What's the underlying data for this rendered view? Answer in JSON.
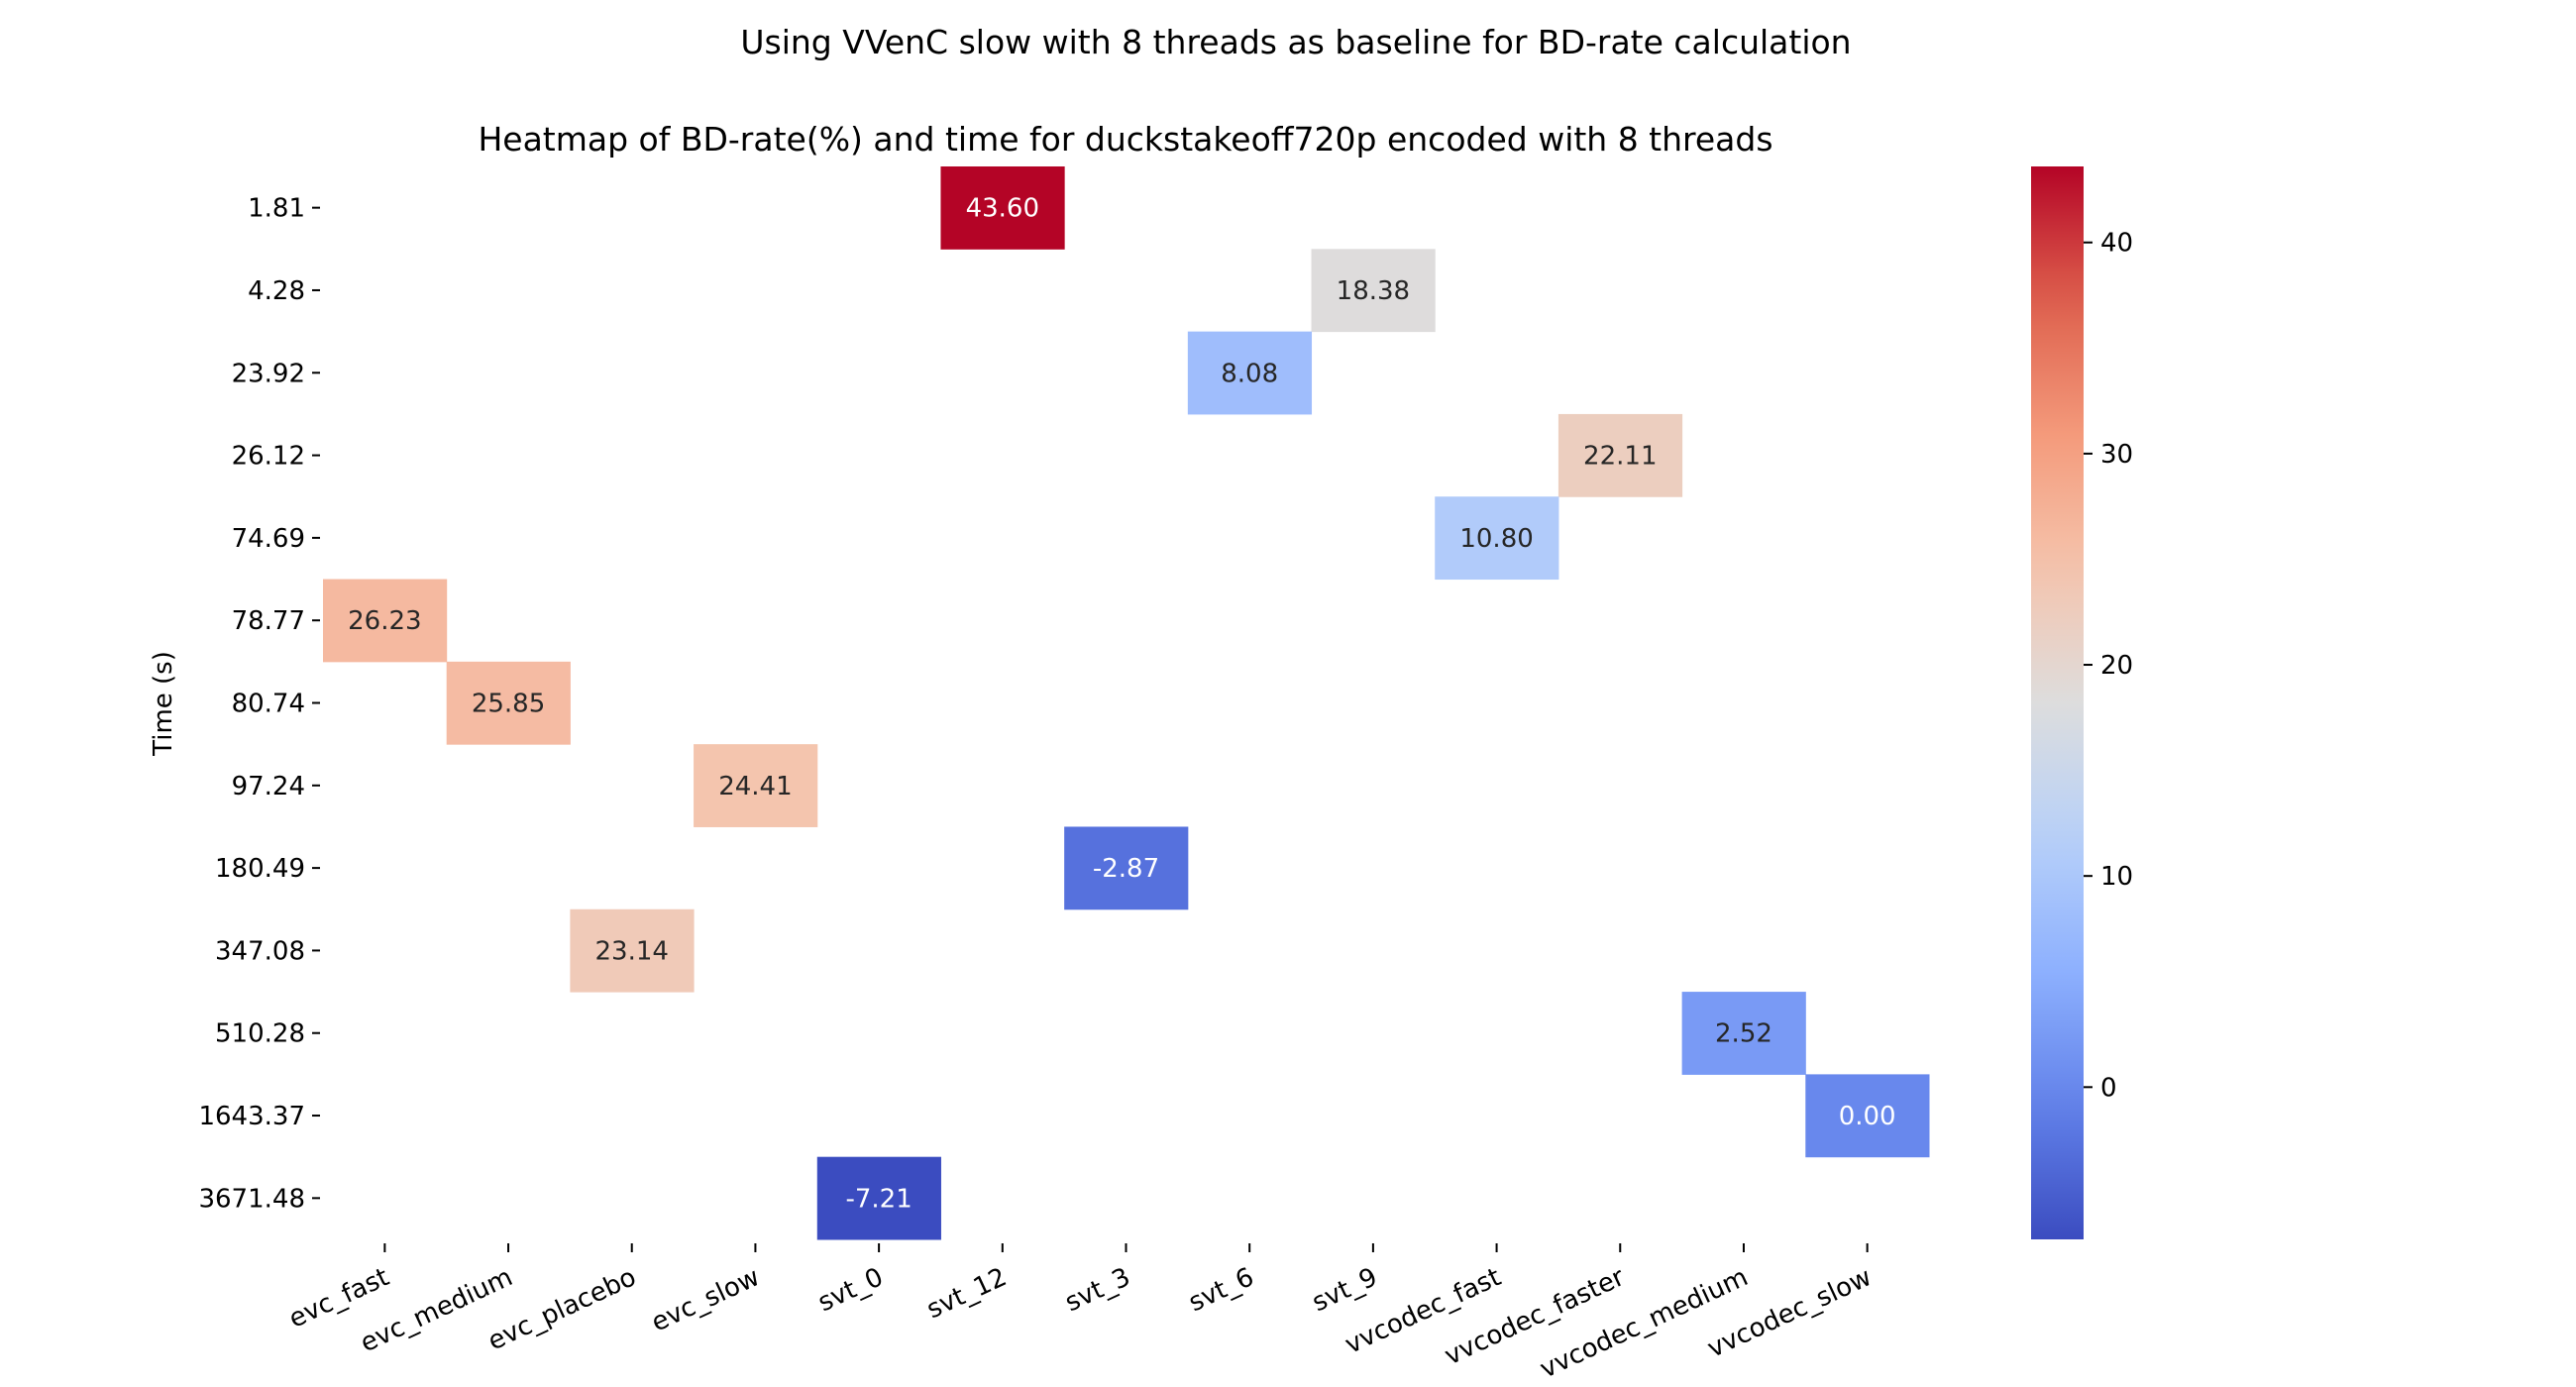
{
  "chart_data": {
    "type": "heatmap",
    "suptitle": "Using VVenC slow with 8 threads as baseline for BD-rate calculation",
    "title": "Heatmap of BD-rate(%) and time for duckstakeoff720p encoded with 8 threads",
    "xlabel": "",
    "ylabel": "Time (s)",
    "x_categories": [
      "evc_fast",
      "evc_medium",
      "evc_placebo",
      "evc_slow",
      "svt_0",
      "svt_12",
      "svt_3",
      "svt_6",
      "svt_9",
      "vvcodec_fast",
      "vvcodec_faster",
      "vvcodec_medium",
      "vvcodec_slow"
    ],
    "y_categories": [
      "1.81",
      "4.28",
      "23.92",
      "26.12",
      "74.69",
      "78.77",
      "80.74",
      "97.24",
      "180.49",
      "347.08",
      "510.28",
      "1643.37",
      "3671.48"
    ],
    "cells": [
      {
        "x": "svt_12",
        "y": "1.81",
        "value": 43.6,
        "label": "43.60"
      },
      {
        "x": "svt_9",
        "y": "4.28",
        "value": 18.38,
        "label": "18.38"
      },
      {
        "x": "svt_6",
        "y": "23.92",
        "value": 8.08,
        "label": "8.08"
      },
      {
        "x": "vvcodec_faster",
        "y": "26.12",
        "value": 22.11,
        "label": "22.11"
      },
      {
        "x": "vvcodec_fast",
        "y": "74.69",
        "value": 10.8,
        "label": "10.80"
      },
      {
        "x": "evc_fast",
        "y": "78.77",
        "value": 26.23,
        "label": "26.23"
      },
      {
        "x": "evc_medium",
        "y": "80.74",
        "value": 25.85,
        "label": "25.85"
      },
      {
        "x": "evc_slow",
        "y": "97.24",
        "value": 24.41,
        "label": "24.41"
      },
      {
        "x": "svt_3",
        "y": "180.49",
        "value": -2.87,
        "label": "-2.87"
      },
      {
        "x": "evc_placebo",
        "y": "347.08",
        "value": 23.14,
        "label": "23.14"
      },
      {
        "x": "vvcodec_medium",
        "y": "510.28",
        "value": 2.52,
        "label": "2.52"
      },
      {
        "x": "vvcodec_slow",
        "y": "1643.37",
        "value": 0.0,
        "label": "0.00"
      },
      {
        "x": "svt_0",
        "y": "3671.48",
        "value": -7.21,
        "label": "-7.21"
      }
    ],
    "colormap": "coolwarm",
    "vmin": -7.21,
    "vmax": 43.6,
    "colorbar_ticks": [
      0,
      10,
      20,
      30,
      40
    ],
    "colorbar_position": "right",
    "grid": false
  }
}
